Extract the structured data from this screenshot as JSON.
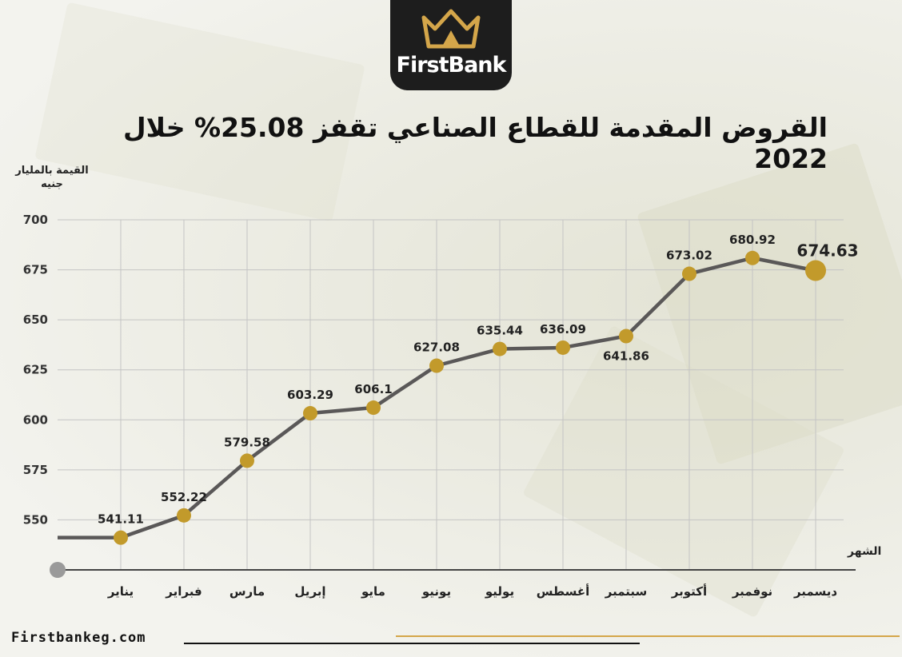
{
  "brand": {
    "name": "FirstBank",
    "website": "Firstbankeg.com"
  },
  "colors": {
    "line": "#5a5858",
    "marker": "#c29a2b",
    "grid": "#c4c4c4",
    "logo_bg": "#1d1d1d",
    "accent": "#d4a64a"
  },
  "chart_data": {
    "type": "line",
    "title": "القروض المقدمة للقطاع الصناعي تقفز 25.08% خلال 2022",
    "ylabel": "القيمة بالمليار جنيه",
    "xlabel": "الشهر",
    "categories": [
      "يناير",
      "فبراير",
      "مارس",
      "إبريل",
      "مايو",
      "يونيو",
      "يوليو",
      "أغسطس",
      "سبتمبر",
      "أكتوبر",
      "نوفمبر",
      "ديسمبر"
    ],
    "values": [
      541.11,
      552.22,
      579.58,
      603.29,
      606.1,
      627.08,
      635.44,
      636.09,
      641.86,
      673.02,
      680.92,
      674.63
    ],
    "data_labels": [
      "541.11",
      "552.22",
      "579.58",
      "603.29",
      "606.1",
      "627.08",
      "635.44",
      "636.09",
      "641.86",
      "673.02",
      "680.92",
      "674.63"
    ],
    "yticks": [
      550,
      575,
      600,
      625,
      650,
      675,
      700
    ],
    "ylim": [
      525,
      700
    ],
    "grid": true,
    "highlight_last": true
  }
}
